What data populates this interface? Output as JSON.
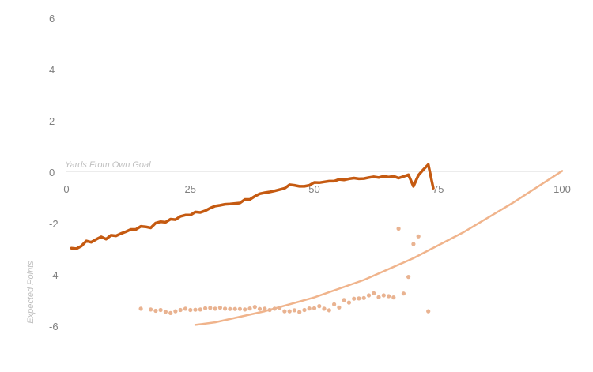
{
  "chart_data": {
    "type": "line",
    "title": "",
    "xlabel": "Yards From Own Goal",
    "ylabel": "Expected Points",
    "xlim": [
      0,
      100
    ],
    "ylim": [
      -6,
      6
    ],
    "x_ticks": [
      0,
      25,
      50,
      75,
      100
    ],
    "y_ticks": [
      6,
      4,
      2,
      0,
      -2,
      -4,
      -6
    ],
    "colors": {
      "line": "#c55a11",
      "scatter": "#e9b391",
      "trend": "#f0b48c",
      "axis": "#d9d9d9",
      "tick_text": "#7f7f7f",
      "axis_title": "#bfbfbf"
    },
    "series": [
      {
        "type": "line",
        "x": [
          1,
          2,
          3,
          4,
          5,
          6,
          7,
          8,
          9,
          10,
          11,
          12,
          13,
          14,
          15,
          16,
          17,
          18,
          19,
          20,
          21,
          22,
          23,
          24,
          25,
          26,
          27,
          28,
          29,
          30,
          31,
          32,
          33,
          34,
          35,
          36,
          37,
          38,
          39,
          40,
          41,
          42,
          43,
          44,
          45,
          46,
          47,
          48,
          49,
          50,
          51,
          52,
          53,
          54,
          55,
          56,
          57,
          58,
          59,
          60,
          61,
          62,
          63,
          64,
          65,
          66,
          67,
          68,
          69,
          70,
          71,
          72,
          73,
          74
        ],
        "y": [
          -2.96,
          -2.98,
          -2.88,
          -2.68,
          -2.73,
          -2.62,
          -2.52,
          -2.61,
          -2.46,
          -2.48,
          -2.39,
          -2.32,
          -2.23,
          -2.23,
          -2.11,
          -2.13,
          -2.17,
          -1.98,
          -1.93,
          -1.95,
          -1.83,
          -1.85,
          -1.72,
          -1.67,
          -1.67,
          -1.55,
          -1.57,
          -1.5,
          -1.4,
          -1.32,
          -1.29,
          -1.25,
          -1.24,
          -1.22,
          -1.2,
          -1.06,
          -1.06,
          -0.94,
          -0.84,
          -0.8,
          -0.77,
          -0.73,
          -0.68,
          -0.63,
          -0.49,
          -0.51,
          -0.55,
          -0.55,
          -0.51,
          -0.4,
          -0.41,
          -0.38,
          -0.35,
          -0.35,
          -0.28,
          -0.3,
          -0.26,
          -0.23,
          -0.26,
          -0.25,
          -0.21,
          -0.18,
          -0.21,
          -0.16,
          -0.19,
          -0.16,
          -0.23,
          -0.17,
          -0.1,
          -0.55,
          -0.12,
          0.1,
          0.3,
          -0.62
        ]
      },
      {
        "type": "scatter",
        "x": [
          15,
          17,
          18,
          19,
          20,
          21,
          22,
          23,
          24,
          25,
          26,
          27,
          28,
          29,
          30,
          31,
          32,
          33,
          34,
          35,
          36,
          37,
          38,
          39,
          40,
          41,
          42,
          43,
          44,
          45,
          46,
          47,
          48,
          49,
          50,
          51,
          52,
          53,
          54,
          55,
          56,
          57,
          58,
          59,
          60,
          61,
          62,
          63,
          64,
          65,
          66,
          67,
          68,
          69,
          70,
          71,
          73
        ],
        "y": [
          -5.32,
          -5.35,
          -5.4,
          -5.37,
          -5.44,
          -5.49,
          -5.42,
          -5.37,
          -5.32,
          -5.37,
          -5.36,
          -5.35,
          -5.3,
          -5.29,
          -5.32,
          -5.28,
          -5.32,
          -5.33,
          -5.33,
          -5.33,
          -5.35,
          -5.31,
          -5.25,
          -5.33,
          -5.32,
          -5.37,
          -5.32,
          -5.28,
          -5.42,
          -5.42,
          -5.38,
          -5.45,
          -5.37,
          -5.31,
          -5.3,
          -5.22,
          -5.32,
          -5.38,
          -5.15,
          -5.27,
          -4.98,
          -5.08,
          -4.93,
          -4.92,
          -4.9,
          -4.8,
          -4.72,
          -4.87,
          -4.8,
          -4.83,
          -4.88,
          -2.2,
          -4.73,
          -4.08,
          -2.8,
          -2.5,
          -5.42
        ]
      },
      {
        "type": "trend",
        "x": [
          26,
          30,
          40,
          50,
          60,
          70,
          80,
          90,
          100
        ],
        "y": [
          -5.95,
          -5.85,
          -5.42,
          -4.88,
          -4.2,
          -3.35,
          -2.35,
          -1.2,
          0.05
        ]
      }
    ]
  }
}
